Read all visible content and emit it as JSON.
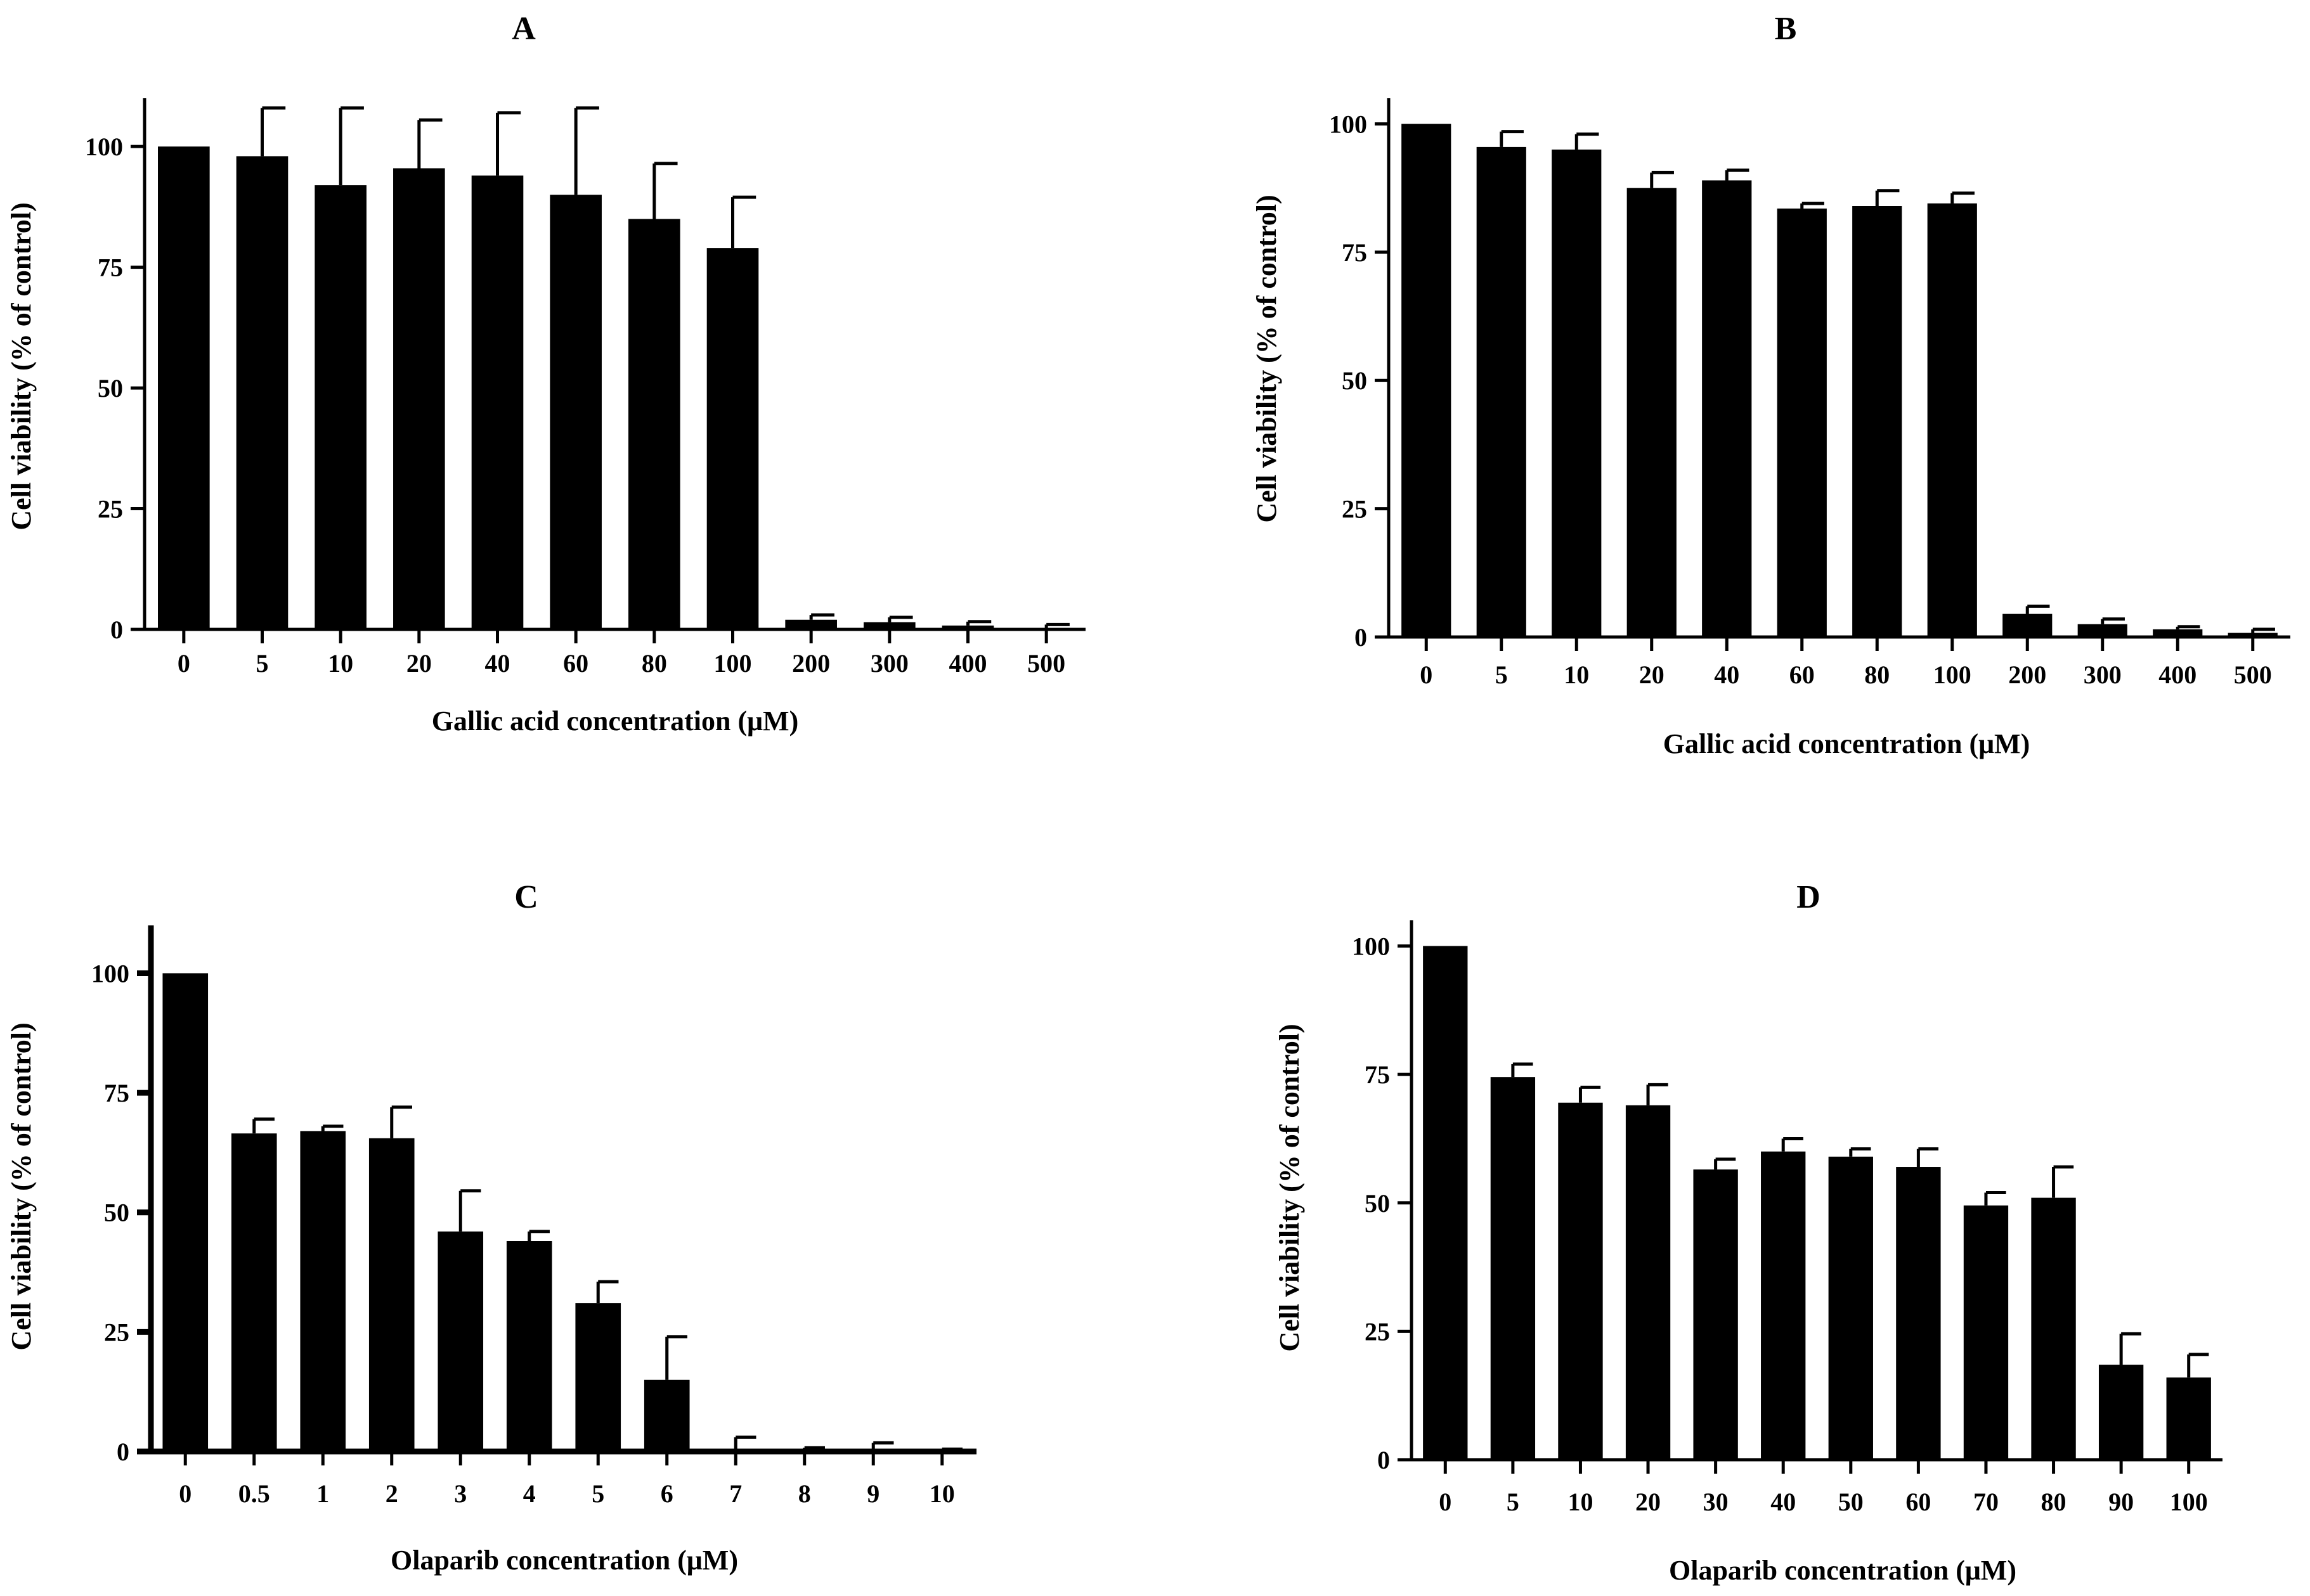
{
  "chart_data": [
    {
      "panel": "A",
      "type": "bar",
      "title": "A",
      "xlabel": "Gallic acid concentration (μM)",
      "ylabel": "Cell viability (% of control)",
      "ylim": [
        0,
        110
      ],
      "yticks": [
        "0",
        "25",
        "50",
        "75",
        "100"
      ],
      "categories": [
        "0",
        "5",
        "10",
        "20",
        "40",
        "60",
        "80",
        "100",
        "200",
        "300",
        "400",
        "500"
      ],
      "values": [
        100,
        98,
        92,
        95.5,
        94,
        90,
        85,
        79,
        2,
        1.5,
        0.8,
        0.3
      ],
      "errors": [
        0,
        10,
        16,
        10,
        13,
        18,
        11.5,
        10.5,
        1,
        1,
        0.8,
        0.7
      ]
    },
    {
      "panel": "B",
      "type": "bar",
      "title": "B",
      "xlabel": "Gallic acid concentration (μM)",
      "ylabel": "Cell viability (% of control)",
      "ylim": [
        0,
        105
      ],
      "yticks": [
        "0",
        "25",
        "50",
        "75",
        "100"
      ],
      "categories": [
        "0",
        "5",
        "10",
        "20",
        "40",
        "60",
        "80",
        "100",
        "200",
        "300",
        "400",
        "500"
      ],
      "values": [
        100,
        95.5,
        95,
        87.5,
        89,
        83.5,
        84,
        84.5,
        4.5,
        2.5,
        1.5,
        0.8
      ],
      "errors": [
        0,
        3,
        3,
        3,
        2,
        1,
        3,
        2,
        1.5,
        1,
        0.5,
        0.7
      ]
    },
    {
      "panel": "C",
      "type": "bar",
      "title": "C",
      "xlabel": "Olaparib concentration (μM)",
      "ylabel": "Cell viability (% of control)",
      "ylim": [
        0,
        110
      ],
      "yticks": [
        "0",
        "25",
        "50",
        "75",
        "100"
      ],
      "categories": [
        "0",
        "0.5",
        "1",
        "2",
        "3",
        "4",
        "5",
        "6",
        "7",
        "8",
        "9",
        "10"
      ],
      "values": [
        100,
        66.5,
        67,
        65.5,
        46,
        44,
        31,
        15,
        0.5,
        0.3,
        0.3,
        0.2
      ],
      "errors": [
        0,
        3,
        1,
        6.5,
        8.5,
        2,
        4.5,
        9,
        2.5,
        0.5,
        1.5,
        0.3
      ]
    },
    {
      "panel": "D",
      "type": "bar",
      "title": "D",
      "xlabel": "Olaparib concentration (μM)",
      "ylabel": "Cell viability (% of control)",
      "ylim": [
        0,
        105
      ],
      "yticks": [
        "0",
        "25",
        "50",
        "75",
        "100"
      ],
      "categories": [
        "0",
        "5",
        "10",
        "20",
        "30",
        "40",
        "50",
        "60",
        "70",
        "80",
        "90",
        "100"
      ],
      "values": [
        100,
        74.5,
        69.5,
        69,
        56.5,
        60,
        59,
        57,
        49.5,
        51,
        18.5,
        16
      ],
      "errors": [
        0,
        2.5,
        3,
        4,
        2,
        2.5,
        1.5,
        3.5,
        2.5,
        6,
        6,
        4.5
      ]
    }
  ]
}
